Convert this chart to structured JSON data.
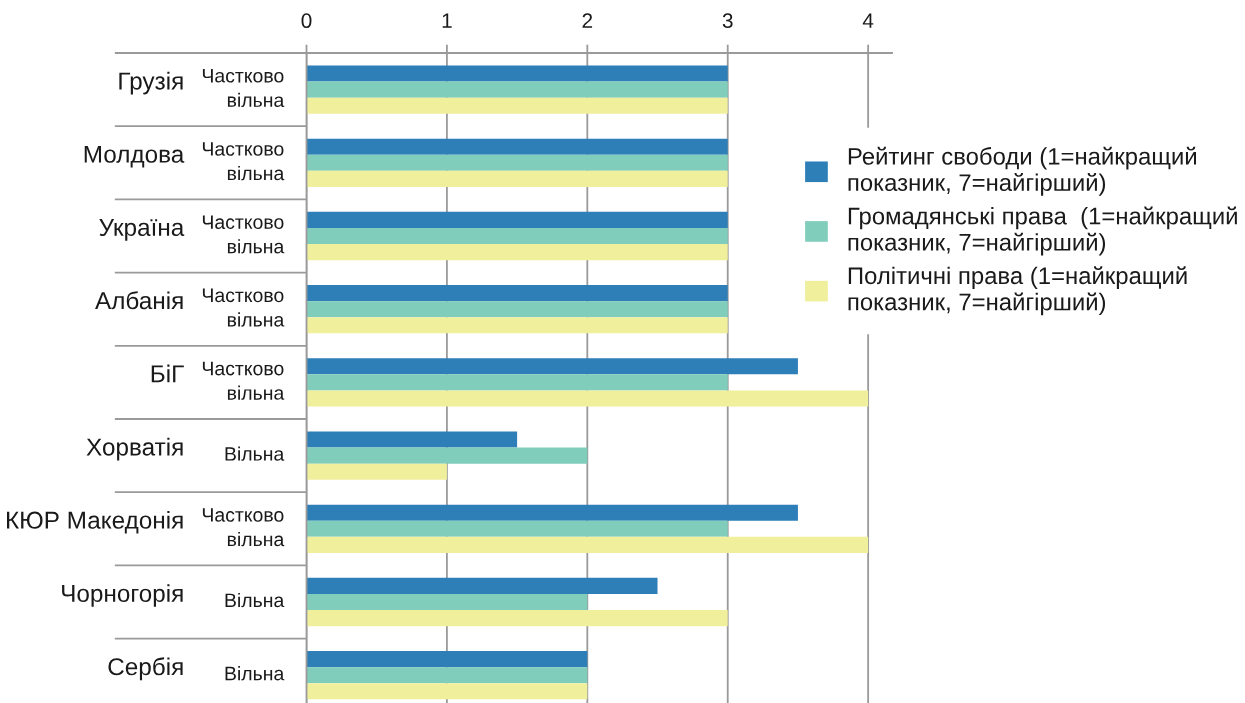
{
  "chart_data": {
    "type": "bar",
    "orientation": "horizontal",
    "categories": [
      "Грузія",
      "Молдова",
      "Україна",
      "Албанія",
      "БіГ",
      "Хорватія",
      "КЮР Македонія",
      "Чорногорія",
      "Сербія"
    ],
    "y2_categories": [
      "Частково\nвільна",
      "Частково\nвільна",
      "Частково\nвільна",
      "Частково\nвільна",
      "Частково\nвільна",
      "Вільна",
      "Частково\nвільна",
      "Вільна",
      "Вільна"
    ],
    "series": [
      {
        "name": "Рейтинг свободи (1=найкращий\nпоказник, 7=найгірший)",
        "color": "#2e7eb8",
        "values": [
          3,
          3,
          3,
          3,
          3.5,
          1.5,
          3.5,
          2.5,
          2
        ]
      },
      {
        "name": "Громадянські права  (1=найкращий\nпоказник, 7=найгірший)",
        "color": "#80cdbb",
        "values": [
          3,
          3,
          3,
          3,
          3,
          2,
          3,
          2,
          2
        ]
      },
      {
        "name": "Політичні права (1=найкращий\nпоказник, 7=найгірший)",
        "color": "#f0ef9c",
        "values": [
          3,
          3,
          3,
          3,
          4,
          1,
          4,
          3,
          2
        ]
      }
    ],
    "xlim": [
      0,
      4.17
    ],
    "xticks": [
      0,
      1,
      2,
      3,
      4
    ],
    "grid": "x",
    "legend": "right"
  }
}
